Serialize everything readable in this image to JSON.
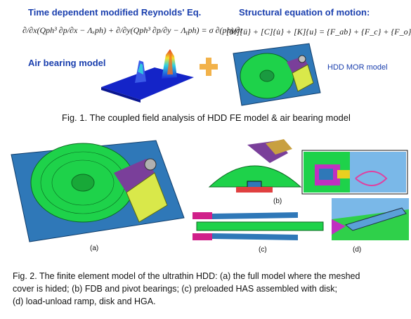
{
  "fig1": {
    "reynolds_title": "Time dependent modified Reynolds' Eq.",
    "reynolds_equation": "∂/∂x(Qph³ ∂p/∂x − Λₓph) + ∂/∂y(Qph³ ∂p/∂y − Λᵧph) = σ ∂(ph)/∂t",
    "air_bearing_label": "Air bearing model",
    "motion_title": "Structural equation of motion:",
    "motion_equation": "[M]{ü} + [C]{u̇} + [K]{u} = {F_ab} + {F_c} + {F_o}",
    "mor_label": "HDD MOR model",
    "caption": "Fig. 1. The coupled field analysis of HDD FE model & air bearing model"
  },
  "fig2": {
    "labels": [
      "(a)",
      "(b)",
      "(c)",
      "(d)"
    ],
    "caption_line1": "Fig. 2. The finite element model of the ultrathin HDD: (a) the full model where the meshed",
    "caption_line2": "cover is hided; (b) FDB and pivot bearings; (c) preloaded HAS assembled with disk;",
    "caption_line3": "(d) load-unload ramp, disk and HGA."
  },
  "colors": {
    "title_blue": "#1a3fae",
    "plus_orange": "#f2b24a",
    "base_blue": "#2f78b8",
    "disk_green": "#27c93f",
    "arm_purple": "#7a3f9a",
    "hga_yellow": "#d9e84a",
    "magenta": "#d0208a"
  }
}
